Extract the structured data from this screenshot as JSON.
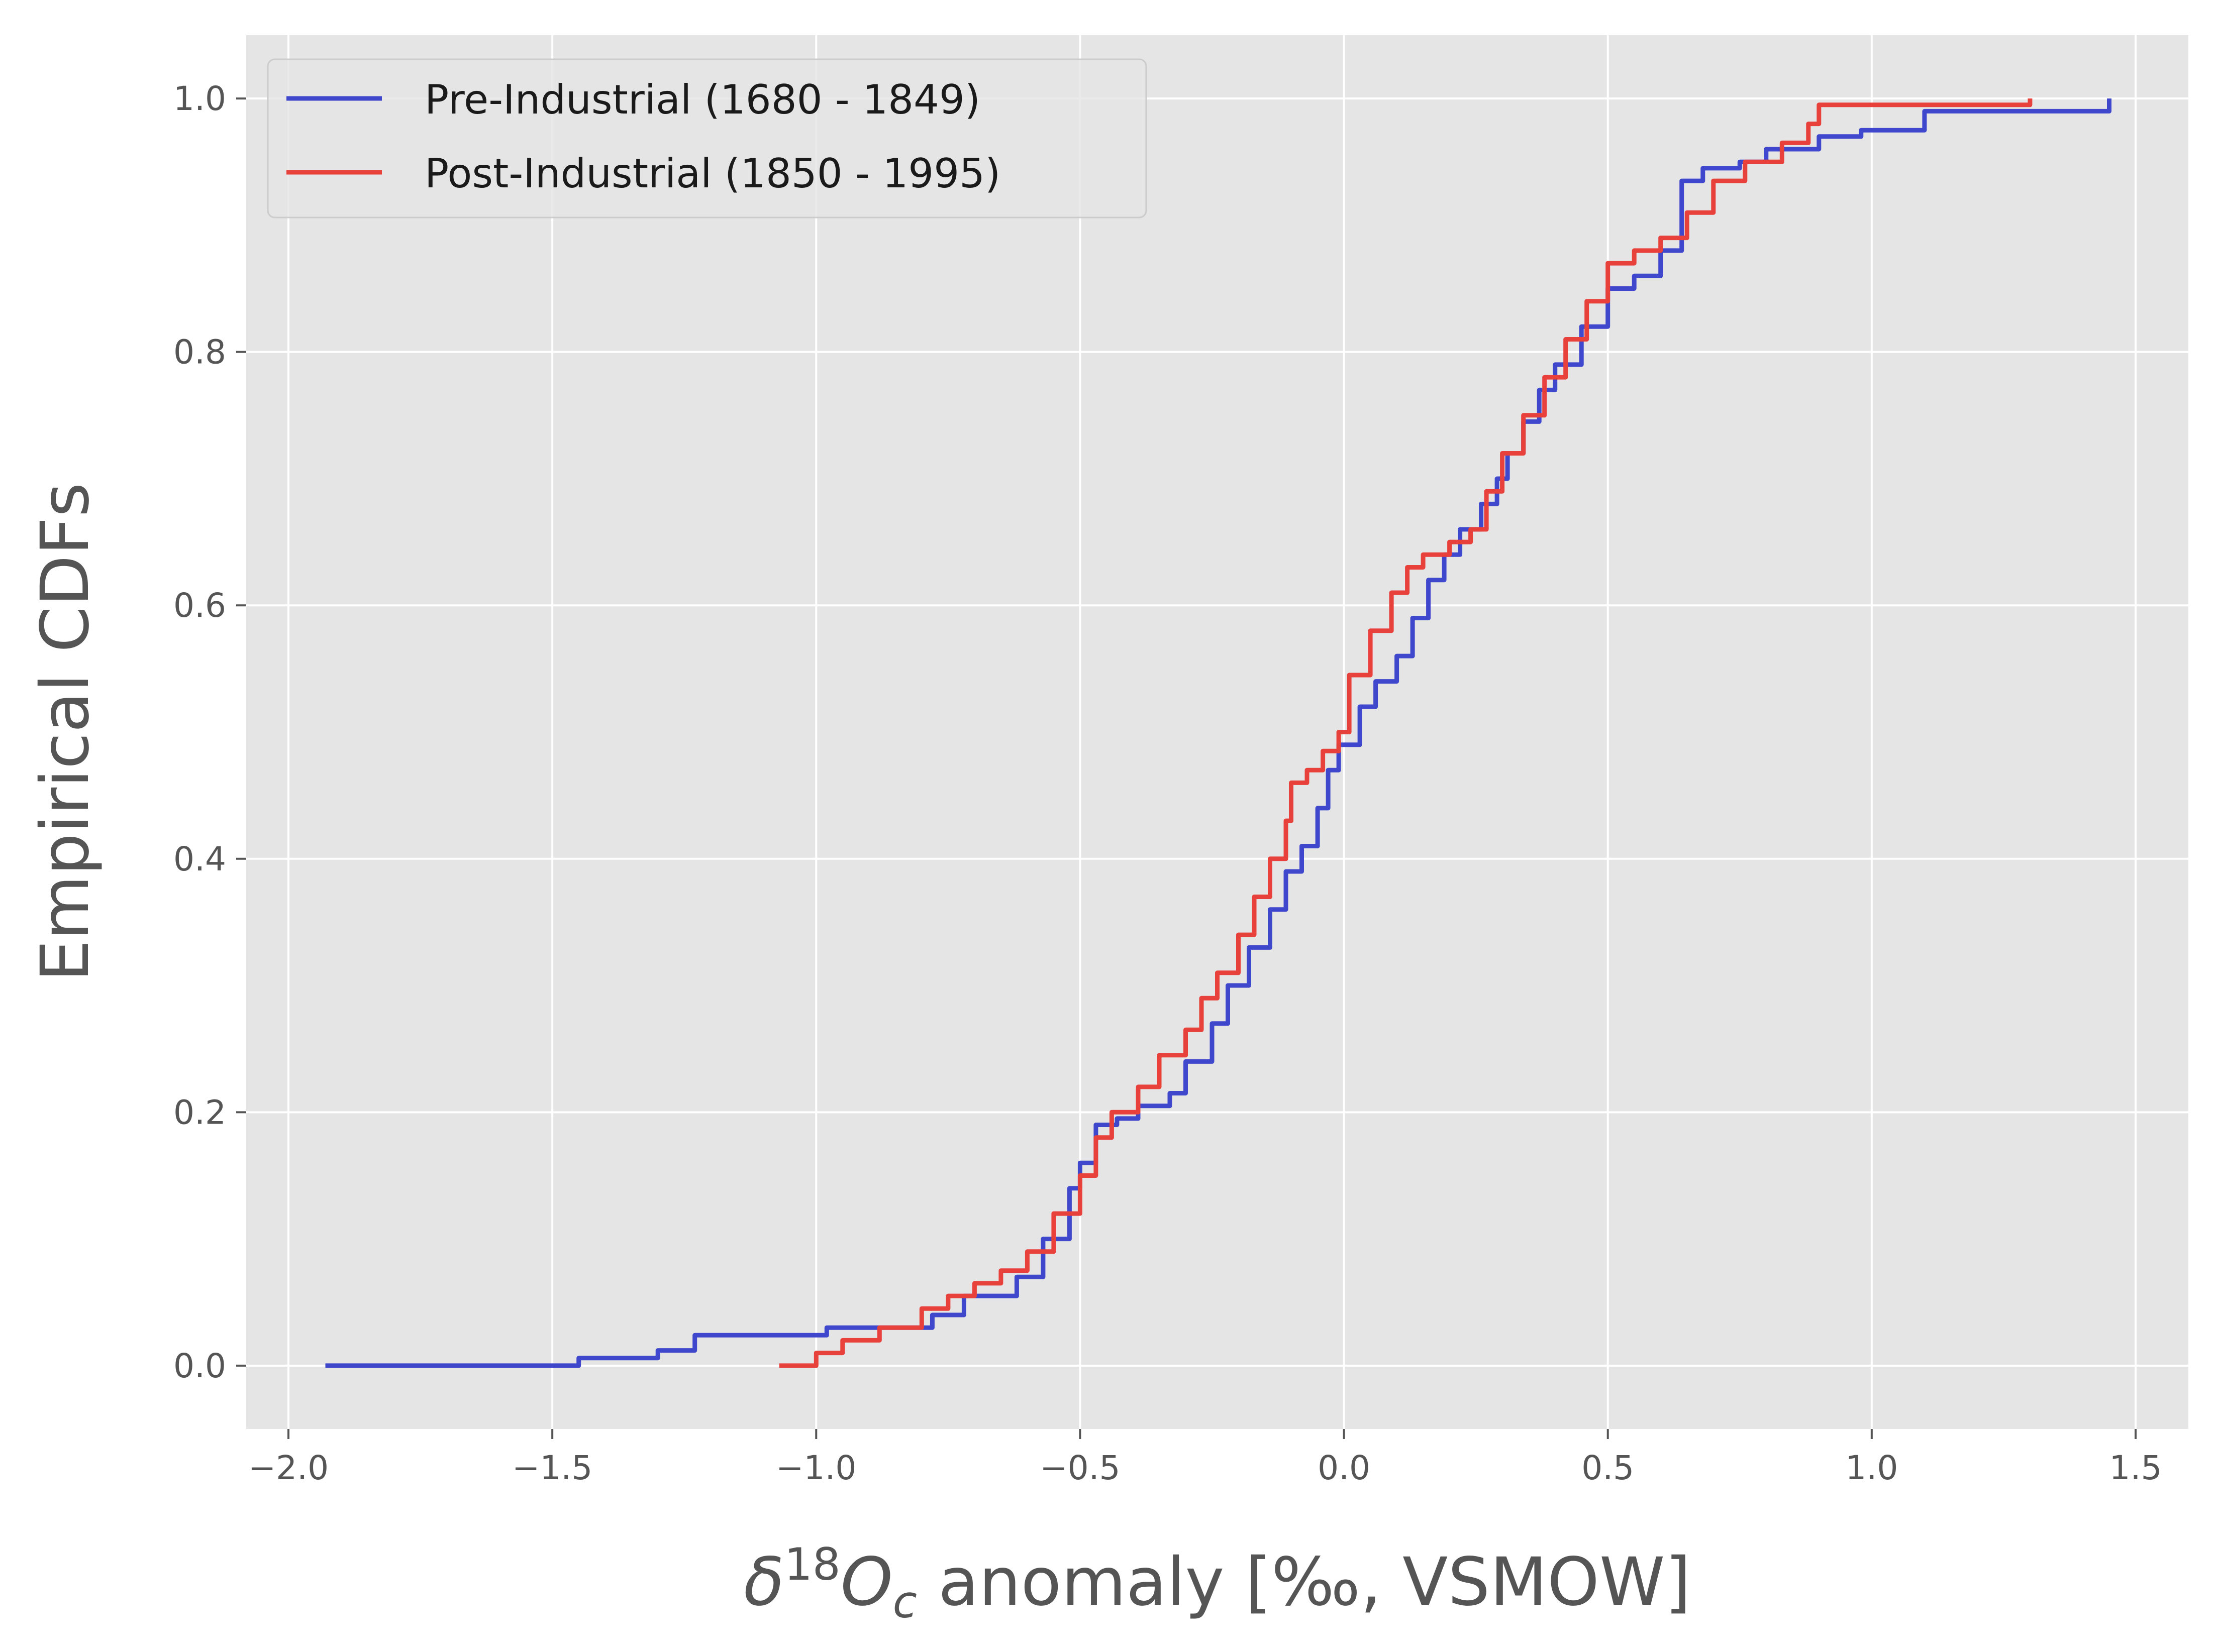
{
  "chart_data": {
    "type": "line",
    "step": true,
    "xlabel": {
      "prefix": "δ",
      "sup": "18",
      "var": "O",
      "sub": "c",
      "rest": " anomaly [‰, VSMOW]"
    },
    "ylabel": "Empirical CDFs",
    "xlim": [
      -2.08,
      1.6
    ],
    "ylim": [
      -0.05,
      1.05
    ],
    "xticks": [
      -2.0,
      -1.5,
      -1.0,
      -0.5,
      0.0,
      0.5,
      1.0,
      1.5
    ],
    "xtick_labels": [
      "−2.0",
      "−1.5",
      "−1.0",
      "−0.5",
      "0.0",
      "0.5",
      "1.0",
      "1.5"
    ],
    "yticks": [
      0.0,
      0.2,
      0.4,
      0.6,
      0.8,
      1.0
    ],
    "ytick_labels": [
      "0.0",
      "0.2",
      "0.4",
      "0.6",
      "0.8",
      "1.0"
    ],
    "grid": true,
    "style": "ggplot",
    "legend": "top-left",
    "series": [
      {
        "name": "Pre-Industrial (1680 - 1849)",
        "color": "#3f48cc",
        "x": [
          -1.93,
          -1.45,
          -1.3,
          -1.23,
          -0.98,
          -0.78,
          -0.72,
          -0.62,
          -0.57,
          -0.52,
          -0.5,
          -0.47,
          -0.43,
          -0.39,
          -0.33,
          -0.3,
          -0.25,
          -0.22,
          -0.18,
          -0.14,
          -0.11,
          -0.08,
          -0.05,
          -0.03,
          -0.01,
          0.03,
          0.06,
          0.1,
          0.13,
          0.16,
          0.19,
          0.22,
          0.26,
          0.29,
          0.31,
          0.34,
          0.37,
          0.4,
          0.45,
          0.5,
          0.55,
          0.6,
          0.64,
          0.68,
          0.75,
          0.8,
          0.9,
          0.98,
          1.1,
          1.45
        ],
        "y": [
          0.0,
          0.006,
          0.012,
          0.024,
          0.03,
          0.04,
          0.055,
          0.07,
          0.1,
          0.14,
          0.16,
          0.19,
          0.195,
          0.205,
          0.215,
          0.24,
          0.27,
          0.3,
          0.33,
          0.36,
          0.39,
          0.41,
          0.44,
          0.47,
          0.49,
          0.52,
          0.54,
          0.56,
          0.59,
          0.62,
          0.64,
          0.66,
          0.68,
          0.7,
          0.72,
          0.745,
          0.77,
          0.79,
          0.82,
          0.85,
          0.86,
          0.88,
          0.935,
          0.945,
          0.95,
          0.96,
          0.97,
          0.975,
          0.99,
          1.0
        ]
      },
      {
        "name": "Post-Industrial (1850 - 1995)",
        "color": "#e8413c",
        "x": [
          -1.07,
          -1.0,
          -0.95,
          -0.88,
          -0.8,
          -0.75,
          -0.7,
          -0.65,
          -0.6,
          -0.55,
          -0.5,
          -0.47,
          -0.44,
          -0.39,
          -0.35,
          -0.3,
          -0.27,
          -0.24,
          -0.2,
          -0.17,
          -0.14,
          -0.11,
          -0.1,
          -0.07,
          -0.04,
          -0.01,
          0.01,
          0.05,
          0.09,
          0.12,
          0.15,
          0.2,
          0.24,
          0.27,
          0.3,
          0.34,
          0.38,
          0.42,
          0.46,
          0.5,
          0.55,
          0.6,
          0.65,
          0.7,
          0.76,
          0.83,
          0.88,
          0.9,
          1.0,
          1.3
        ],
        "y": [
          0.0,
          0.01,
          0.02,
          0.03,
          0.045,
          0.055,
          0.065,
          0.075,
          0.09,
          0.12,
          0.15,
          0.18,
          0.2,
          0.22,
          0.245,
          0.265,
          0.29,
          0.31,
          0.34,
          0.37,
          0.4,
          0.43,
          0.46,
          0.47,
          0.485,
          0.5,
          0.545,
          0.58,
          0.61,
          0.63,
          0.64,
          0.65,
          0.66,
          0.69,
          0.72,
          0.75,
          0.78,
          0.81,
          0.84,
          0.87,
          0.88,
          0.89,
          0.91,
          0.935,
          0.95,
          0.965,
          0.98,
          0.995,
          0.995,
          1.0
        ]
      }
    ]
  }
}
